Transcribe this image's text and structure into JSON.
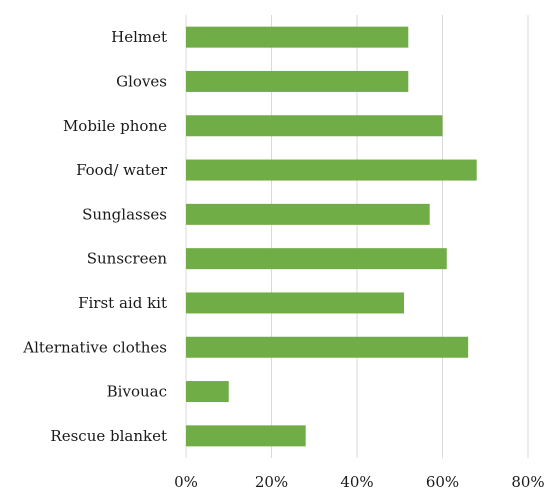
{
  "chart_data": {
    "type": "bar",
    "orientation": "horizontal",
    "title": "",
    "xlabel": "",
    "ylabel": "",
    "categories": [
      "Helmet",
      "Gloves",
      "Mobile phone",
      "Food/ water",
      "Sunglasses",
      "Sunscreen",
      "First aid kit",
      "Alternative clothes",
      "Bivouac",
      "Rescue blanket"
    ],
    "values": [
      52,
      52,
      60,
      68,
      57,
      61,
      51,
      66,
      10,
      28
    ],
    "value_unit": "%",
    "xlim": [
      0,
      80
    ],
    "xticks": [
      0,
      20,
      40,
      60,
      80
    ],
    "xtick_labels": [
      "0%",
      "20%",
      "40%",
      "60%",
      "80%"
    ],
    "grid": "vertical",
    "legend": "none",
    "bar_color": "#70ad47"
  }
}
